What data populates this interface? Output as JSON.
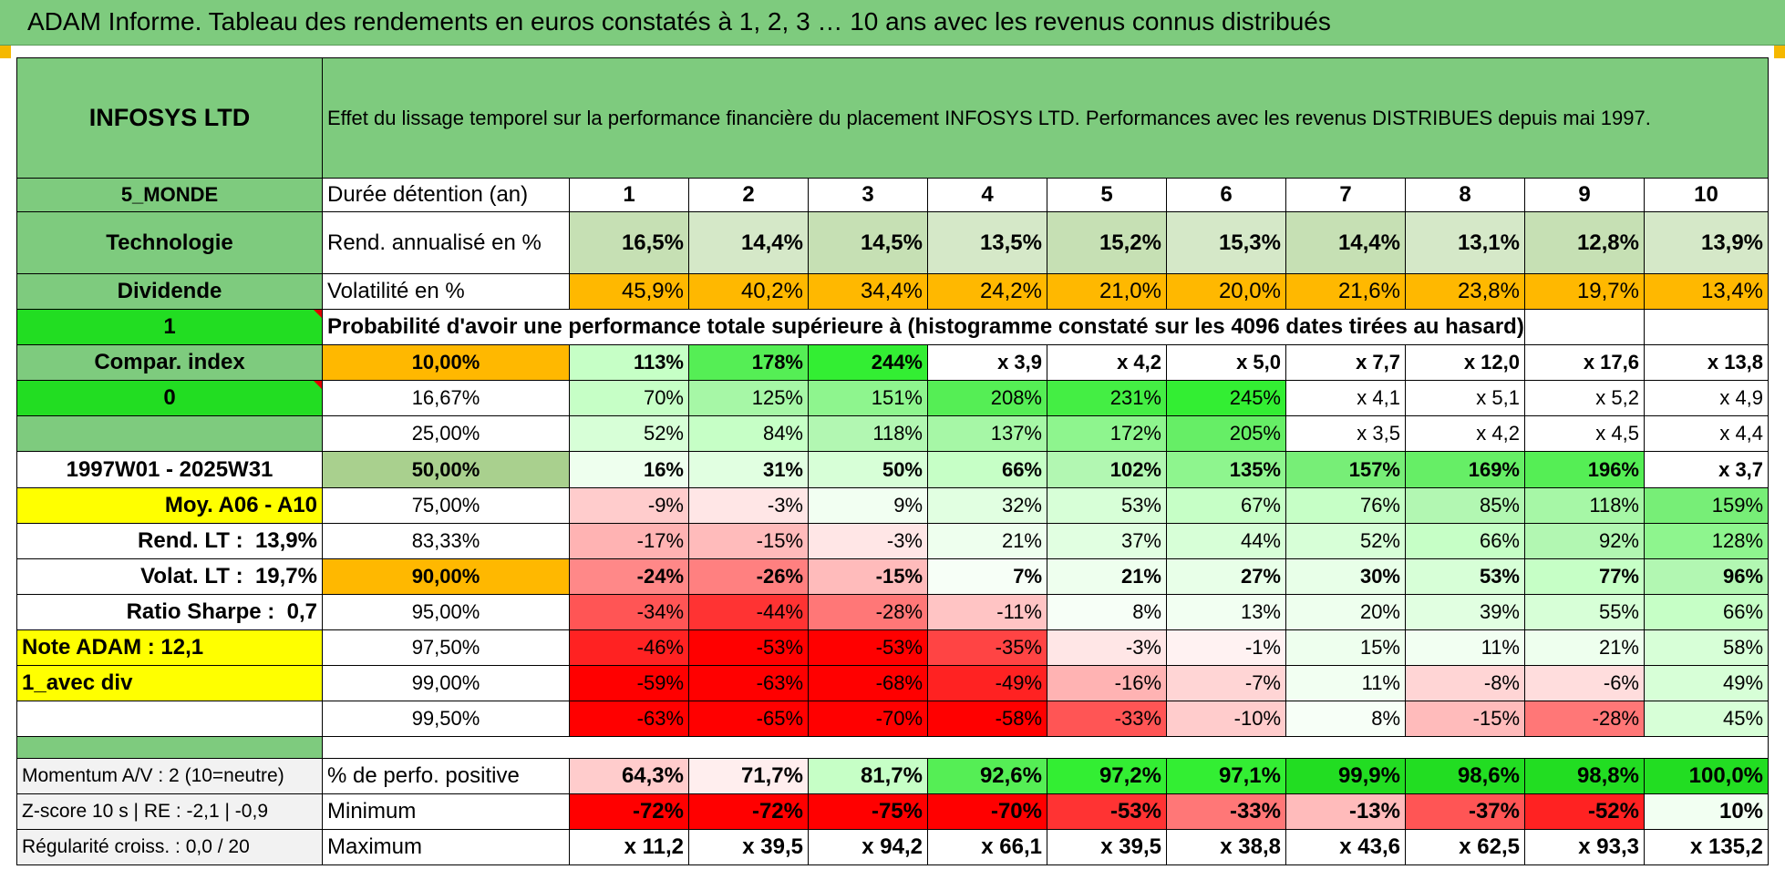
{
  "title": "ADAM Informe. Tableau des rendements en euros constatés à 1, 2, 3 … 10 ans avec les revenus connus distribués",
  "colors": {
    "header_green": "#7ecb7e",
    "lime": "#22dd22",
    "yellow": "#ffff00",
    "orange": "#ffb800",
    "red_text": "#e00000"
  },
  "fund": {
    "name": "INFOSYS LTD",
    "region": "5_MONDE",
    "sector": "Technologie",
    "distribution": "Dividende",
    "flag1": "1",
    "compar_label": "Compar. index",
    "flag2": "0"
  },
  "description": "Effet du lissage temporel sur la performance financière du placement INFOSYS LTD. Performances avec les revenus DISTRIBUES depuis mai 1997.",
  "durations": {
    "label": "Durée détention (an)",
    "values": [
      "1",
      "2",
      "3",
      "4",
      "5",
      "6",
      "7",
      "8",
      "9",
      "10"
    ]
  },
  "rend": {
    "label": "Rend. annualisé en %",
    "values": [
      "16,5%",
      "14,4%",
      "14,5%",
      "13,5%",
      "15,2%",
      "15,3%",
      "14,4%",
      "13,1%",
      "12,8%",
      "13,9%"
    ]
  },
  "vol": {
    "label": "Volatilité en %",
    "values": [
      "45,9%",
      "40,2%",
      "34,4%",
      "24,2%",
      "21,0%",
      "20,0%",
      "21,6%",
      "23,8%",
      "19,7%",
      "13,4%"
    ]
  },
  "prob_title": "Probabilité d'avoir une performance totale supérieure à (histogramme constaté sur les 4096 dates tirées au hasard)",
  "sidebar": {
    "period": "1997W01 - 2025W31",
    "moy": "Moy. A06 - A10",
    "rend_lt_label": "Rend. LT :",
    "rend_lt": "13,9%",
    "volat_lt_label": "Volat. LT :",
    "volat_lt": "19,7%",
    "sharpe_label": "Ratio Sharpe :",
    "sharpe": "0,7",
    "note": "Note ADAM : 12,1",
    "div": "1_avec div"
  },
  "quantiles": [
    {
      "p": "10,00%",
      "values": [
        "113%",
        "178%",
        "244%",
        "x 3,9",
        "x 4,2",
        "x 5,0",
        "x 7,7",
        "x 12,0",
        "x 17,6",
        "x 13,8"
      ],
      "colors": [
        "#c6ffc6",
        "#55ee55",
        "#33ee33",
        "#ffffff",
        "#ffffff",
        "#ffffff",
        "#ffffff",
        "#ffffff",
        "#ffffff",
        "#ffffff"
      ]
    },
    {
      "p": "16,67%",
      "values": [
        "70%",
        "125%",
        "151%",
        "208%",
        "231%",
        "245%",
        "x 4,1",
        "x 5,1",
        "x 5,2",
        "x 4,9"
      ],
      "colors": [
        "#c6ffc6",
        "#a6f7a6",
        "#8ef58e",
        "#55ee55",
        "#44ee44",
        "#33ee33",
        "#ffffff",
        "#ffffff",
        "#ffffff",
        "#ffffff"
      ]
    },
    {
      "p": "25,00%",
      "values": [
        "52%",
        "84%",
        "118%",
        "137%",
        "172%",
        "205%",
        "x 3,5",
        "x 4,2",
        "x 4,5",
        "x 4,4"
      ],
      "colors": [
        "#d7ffd7",
        "#c6ffc6",
        "#b2f7b2",
        "#a6f7a6",
        "#8ef58e",
        "#66ee66",
        "#ffffff",
        "#ffffff",
        "#ffffff",
        "#ffffff"
      ]
    },
    {
      "p": "50,00%",
      "values": [
        "16%",
        "31%",
        "50%",
        "66%",
        "102%",
        "135%",
        "157%",
        "169%",
        "196%",
        "x 3,7"
      ],
      "colors": [
        "#eeffee",
        "#e1ffe1",
        "#d7ffd7",
        "#c6ffc6",
        "#b2f7b2",
        "#8ef58e",
        "#77ee77",
        "#66ee66",
        "#55ee55",
        "#ffffff"
      ]
    },
    {
      "p": "75,00%",
      "values": [
        "-9%",
        "-3%",
        "9%",
        "32%",
        "53%",
        "67%",
        "76%",
        "85%",
        "118%",
        "159%"
      ],
      "colors": [
        "#ffcccc",
        "#ffe6e6",
        "#f2fff2",
        "#e1ffe1",
        "#d7ffd7",
        "#c6ffc6",
        "#c6ffc6",
        "#b2f7b2",
        "#a6f7a6",
        "#77ee77"
      ]
    },
    {
      "p": "83,33%",
      "values": [
        "-17%",
        "-15%",
        "-3%",
        "21%",
        "37%",
        "44%",
        "52%",
        "66%",
        "92%",
        "128%"
      ],
      "colors": [
        "#ffb3b3",
        "#ffbbbb",
        "#ffe6e6",
        "#eeffee",
        "#e1ffe1",
        "#d7ffd7",
        "#d7ffd7",
        "#c6ffc6",
        "#b2f7b2",
        "#8ef58e"
      ]
    },
    {
      "p": "90,00%",
      "values": [
        "-24%",
        "-26%",
        "-15%",
        "7%",
        "21%",
        "27%",
        "30%",
        "53%",
        "77%",
        "96%"
      ],
      "colors": [
        "#ff8888",
        "#ff8080",
        "#ffbbbb",
        "#f7fff7",
        "#eeffee",
        "#e8ffe8",
        "#e8ffe8",
        "#d7ffd7",
        "#c6ffc6",
        "#b2f7b2"
      ]
    },
    {
      "p": "95,00%",
      "values": [
        "-34%",
        "-44%",
        "-28%",
        "-11%",
        "8%",
        "13%",
        "20%",
        "39%",
        "55%",
        "66%"
      ],
      "colors": [
        "#ff5555",
        "#ff3333",
        "#ff7777",
        "#ffc4c4",
        "#f7fff7",
        "#f2fff2",
        "#eeffee",
        "#e1ffe1",
        "#d7ffd7",
        "#c6ffc6"
      ]
    },
    {
      "p": "97,50%",
      "values": [
        "-46%",
        "-53%",
        "-53%",
        "-35%",
        "-3%",
        "-1%",
        "15%",
        "11%",
        "21%",
        "58%"
      ],
      "colors": [
        "#ff2222",
        "#ff0000",
        "#ff0000",
        "#ff4444",
        "#ffe6e6",
        "#fff2f2",
        "#eeffee",
        "#f2fff2",
        "#eeffee",
        "#d7ffd7"
      ]
    },
    {
      "p": "99,00%",
      "values": [
        "-59%",
        "-63%",
        "-68%",
        "-49%",
        "-16%",
        "-7%",
        "11%",
        "-8%",
        "-6%",
        "49%"
      ],
      "colors": [
        "#ff0000",
        "#ff0000",
        "#ff0000",
        "#ff2222",
        "#ffb3b3",
        "#ffd5d5",
        "#f2fff2",
        "#ffd5d5",
        "#ffdddd",
        "#d7ffd7"
      ]
    },
    {
      "p": "99,50%",
      "values": [
        "-63%",
        "-65%",
        "-70%",
        "-58%",
        "-33%",
        "-10%",
        "8%",
        "-15%",
        "-28%",
        "45%"
      ],
      "colors": [
        "#ff0000",
        "#ff0000",
        "#ff0000",
        "#ff0000",
        "#ff5555",
        "#ffcccc",
        "#f7fff7",
        "#ffbbbb",
        "#ff7777",
        "#d7ffd7"
      ]
    }
  ],
  "stats": [
    {
      "side": "Momentum A/V : 2 (10=neutre)",
      "label": "% de perfo. positive",
      "values": [
        "64,3%",
        "71,7%",
        "81,7%",
        "92,6%",
        "97,2%",
        "97,1%",
        "99,9%",
        "98,6%",
        "98,8%",
        "100,0%"
      ],
      "colors": [
        "#ffcccc",
        "#ffeeee",
        "#c6ffc6",
        "#55ee55",
        "#33ee33",
        "#33ee33",
        "#22dd22",
        "#22dd22",
        "#22dd22",
        "#22dd22"
      ]
    },
    {
      "side": "Z-score 10 s | RE : -2,1 | -0,9",
      "label": "Minimum",
      "values": [
        "-72%",
        "-72%",
        "-75%",
        "-70%",
        "-53%",
        "-33%",
        "-13%",
        "-37%",
        "-52%",
        "10%"
      ],
      "colors": [
        "#ff0000",
        "#ff0000",
        "#ff0000",
        "#ff0000",
        "#ff3333",
        "#ff7777",
        "#ffbbbb",
        "#ff5555",
        "#ff2222",
        "#f2fff2"
      ]
    },
    {
      "side": "Régularité croiss. : 0,0 / 20",
      "label": "Maximum",
      "values": [
        "x 11,2",
        "x 39,5",
        "x 94,2",
        "x 66,1",
        "x 39,5",
        "x 38,8",
        "x 43,6",
        "x 62,5",
        "x 93,3",
        "x 135,2"
      ],
      "colors": [
        "#ffffff",
        "#ffffff",
        "#ffffff",
        "#ffffff",
        "#ffffff",
        "#ffffff",
        "#ffffff",
        "#ffffff",
        "#ffffff",
        "#ffffff"
      ]
    }
  ]
}
